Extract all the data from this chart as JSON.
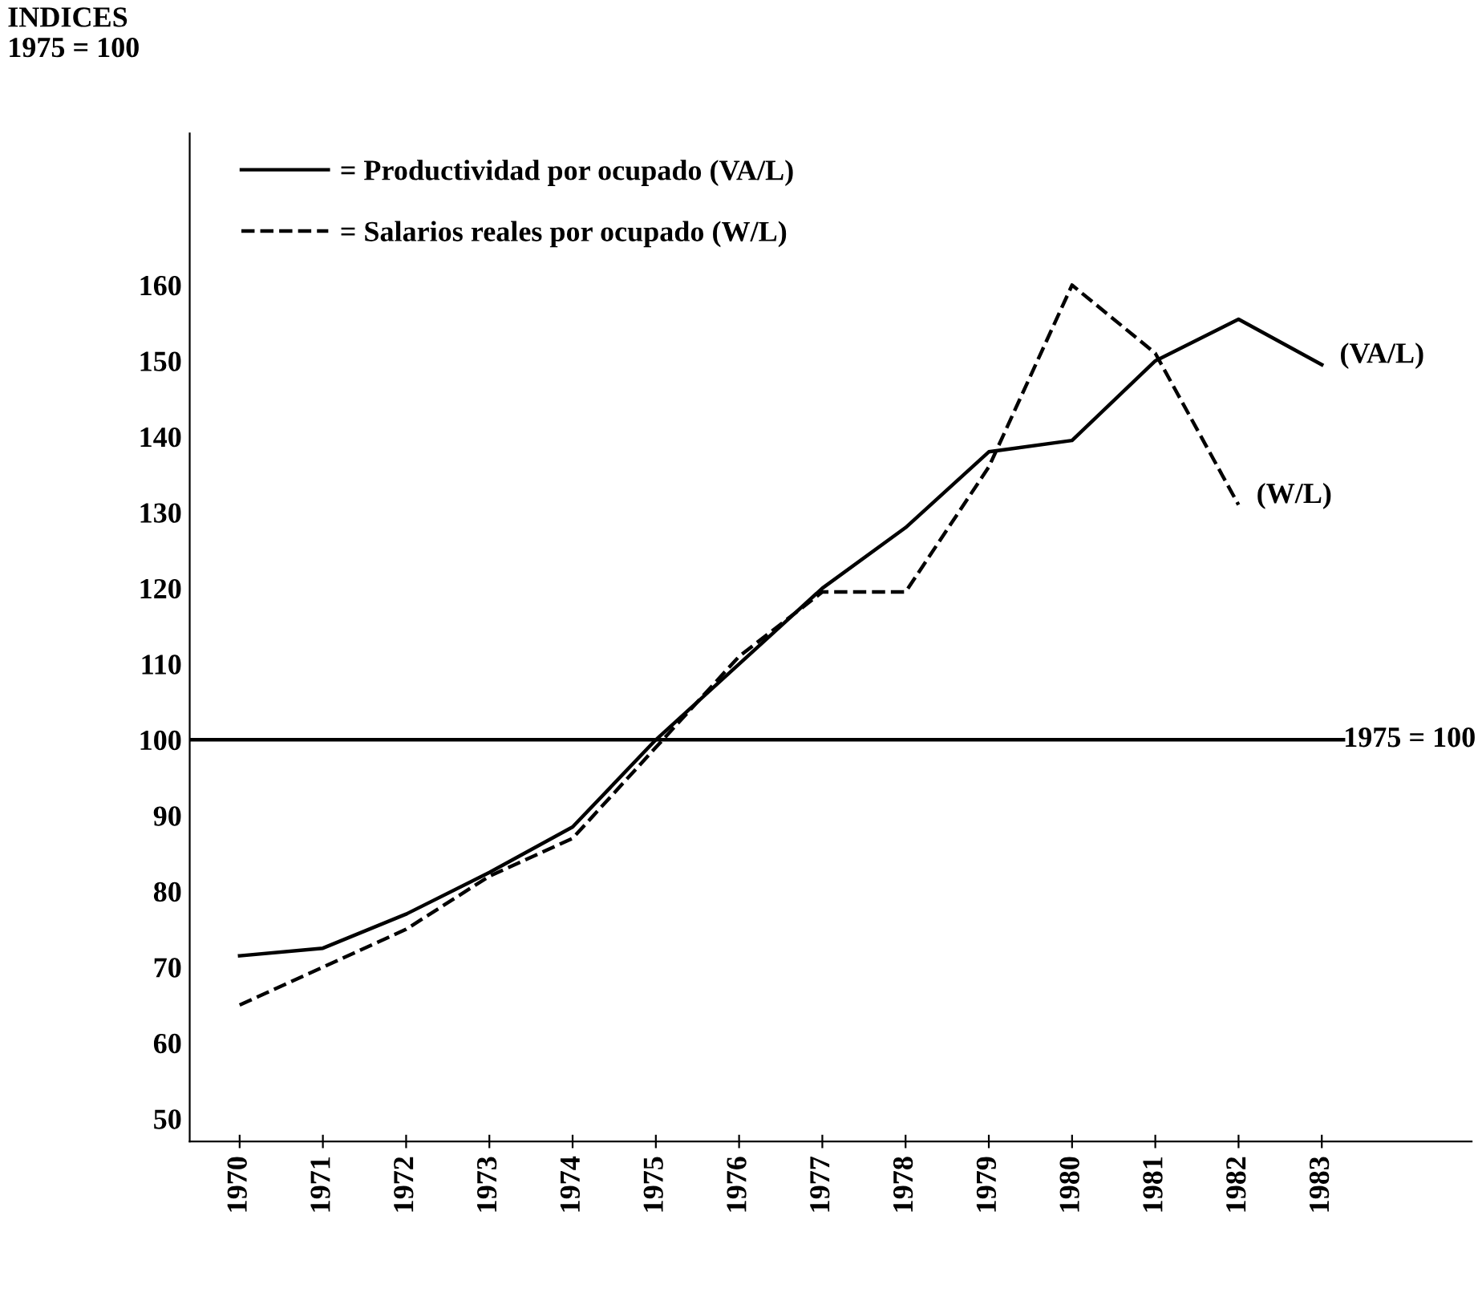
{
  "chart_data": {
    "type": "line",
    "ylabel": "INDICES\n1975 = 100",
    "x": [
      1970,
      1971,
      1972,
      1973,
      1974,
      1975,
      1976,
      1977,
      1978,
      1979,
      1980,
      1981,
      1982,
      1983
    ],
    "series": [
      {
        "name": "= Productividad por ocupado (VA/L)",
        "color": "#000000",
        "line_style": "solid",
        "values": [
          71.5,
          72.5,
          77,
          82.5,
          88.5,
          100,
          110,
          120,
          128,
          138,
          139.5,
          150,
          155.5,
          149.5
        ]
      },
      {
        "name": "= Salarios reales por ocupado (W/L)",
        "color": "#000000",
        "line_style": "dashed",
        "values": [
          65,
          70,
          75,
          82,
          87,
          99,
          111,
          119.5,
          119.5,
          136,
          160,
          151,
          131,
          null
        ]
      }
    ],
    "annotations": [
      {
        "text": "(VA/L)",
        "x": 1983,
        "y": 149.5
      },
      {
        "text": "(W/L)",
        "x": 1982,
        "y": 131
      }
    ],
    "ref_lines": [
      {
        "axis": "y",
        "value": 100,
        "label": "1975 = 100",
        "color": "#000000"
      }
    ],
    "xlim": [
      1969.4,
      1984.8
    ],
    "ylim": [
      47,
      180
    ],
    "xticks": [
      1970,
      1971,
      1972,
      1973,
      1974,
      1975,
      1976,
      1977,
      1978,
      1979,
      1980,
      1981,
      1982,
      1983
    ],
    "yticks": [
      50,
      60,
      70,
      80,
      90,
      100,
      110,
      120,
      130,
      140,
      150,
      160
    ],
    "grid": false,
    "legend": "top left",
    "marker": "none"
  }
}
